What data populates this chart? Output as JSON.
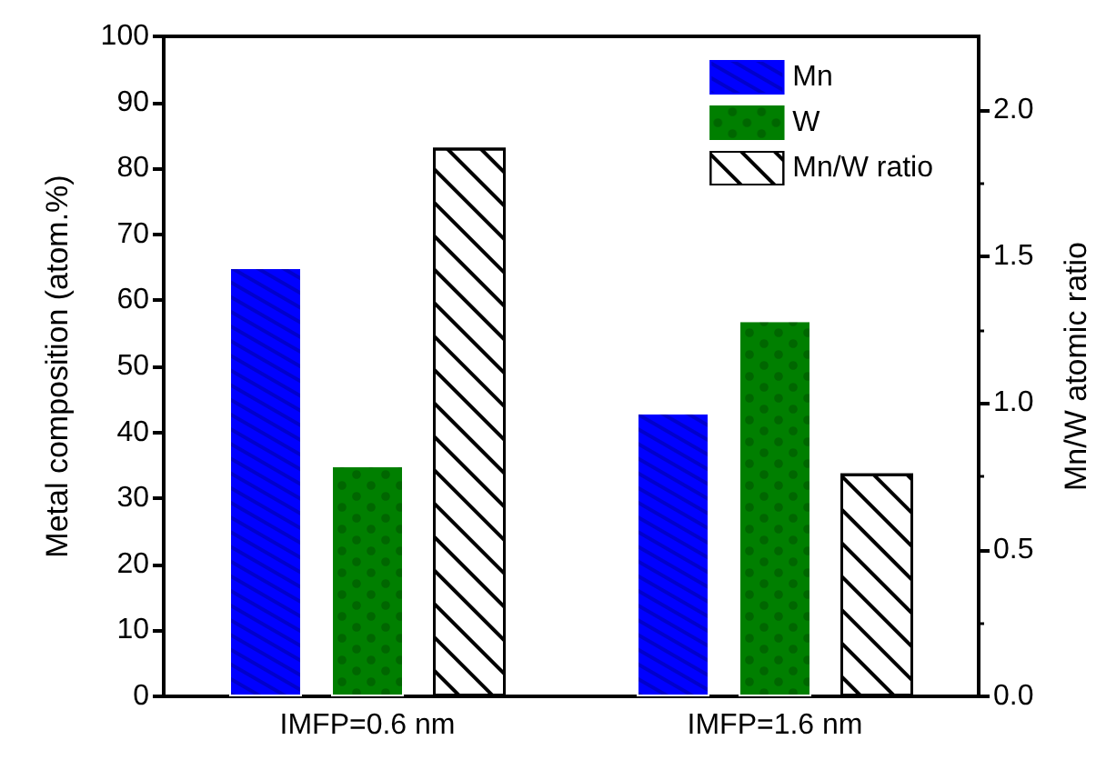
{
  "chart_data": {
    "type": "bar",
    "categories": [
      "IMFP=0.6 nm",
      "IMFP=1.6 nm"
    ],
    "series": [
      {
        "name": "Mn",
        "color": "#0000ff",
        "values": [
          65,
          43
        ]
      },
      {
        "name": "W",
        "color": "#007f00",
        "values": [
          35,
          57
        ]
      },
      {
        "name": "Mn/W ratio",
        "color": "#ffffff",
        "values": [
          1.87,
          0.76
        ],
        "axis": "y2"
      }
    ],
    "ylabel": "Metal composition (atom.%)",
    "y2label": "Mn/W atomic ratio",
    "ylim": [
      0,
      100
    ],
    "yticks": [
      0,
      10,
      20,
      30,
      40,
      50,
      60,
      70,
      80,
      90,
      100
    ],
    "y2lim": [
      0,
      2.25
    ],
    "y2ticks": [
      {
        "value": 0,
        "label": "0.0"
      },
      {
        "value": 0.5,
        "label": "0.5"
      },
      {
        "value": 1,
        "label": "1.0"
      },
      {
        "value": 1.5,
        "label": "1.5"
      },
      {
        "value": 2,
        "label": "2.0"
      }
    ],
    "legend": "top right",
    "grid": false
  }
}
